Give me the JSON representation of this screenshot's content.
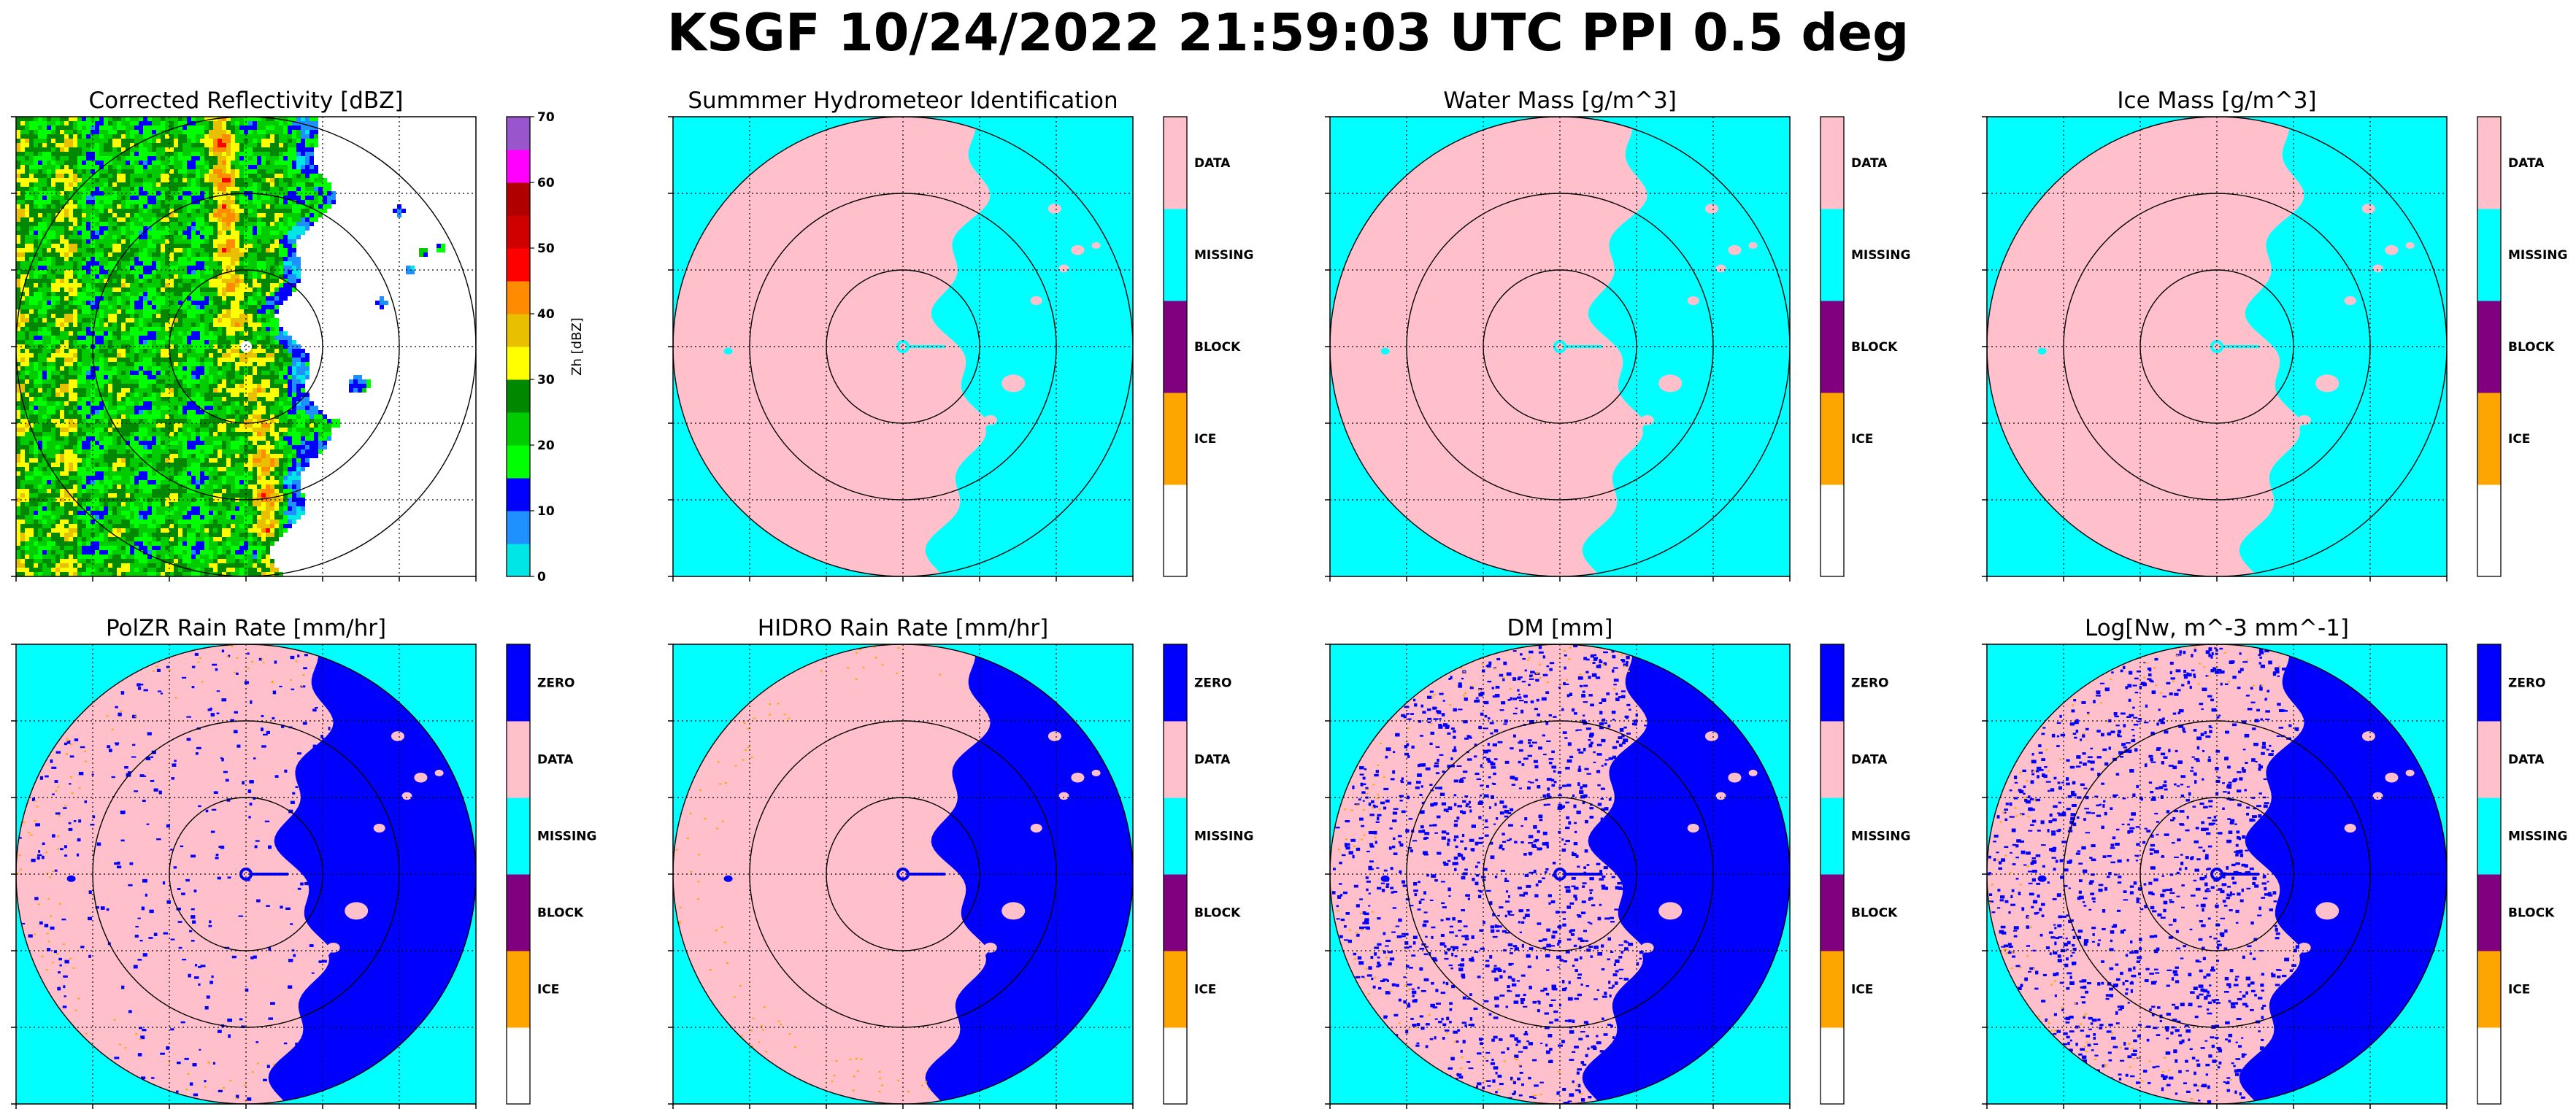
{
  "figure": {
    "title": "KSGF 10/24/2022 21:59:03 UTC PPI 0.5 deg"
  },
  "colors": {
    "pink": "#ffc0cb",
    "cyan": "#00ffff",
    "blue": "#0000ff",
    "purple": "#800080",
    "orange": "#ffa500",
    "white": "#ffffff"
  },
  "chart_data": [
    {
      "type": "heatmap",
      "title": "Corrected Reflectivity [dBZ]",
      "map": "reflectivity",
      "colorbar": {
        "kind": "continuous",
        "label": "Zh [dBZ]",
        "range": [
          0,
          70
        ],
        "ticks": [
          "0",
          "10",
          "20",
          "30",
          "40",
          "50",
          "60",
          "70"
        ],
        "colors": [
          "#00e5e5",
          "#1e90ff",
          "#0000ff",
          "#00ff00",
          "#00cc00",
          "#008800",
          "#ffff00",
          "#e8c000",
          "#ff8c00",
          "#ff0000",
          "#d00000",
          "#b00000",
          "#ff00ff",
          "#9955cc"
        ]
      },
      "range_rings_km": [
        50,
        100,
        150
      ],
      "grid": true
    },
    {
      "type": "heatmap",
      "title": "Summmer Hydrometeor Identification",
      "map": "class",
      "colorbar": {
        "kind": "categorical",
        "categories": [
          "",
          "ICE",
          "BLOCK",
          "MISSING",
          "DATA"
        ],
        "colors": [
          "#ffffff",
          "#ffa500",
          "#800080",
          "#00ffff",
          "#ffc0cb"
        ]
      },
      "range_rings_km": [
        50,
        100,
        150
      ],
      "grid": true
    },
    {
      "type": "heatmap",
      "title": "Water Mass [g/m^3]",
      "map": "class",
      "colorbar": {
        "kind": "categorical",
        "categories": [
          "",
          "ICE",
          "BLOCK",
          "MISSING",
          "DATA"
        ],
        "colors": [
          "#ffffff",
          "#ffa500",
          "#800080",
          "#00ffff",
          "#ffc0cb"
        ]
      },
      "range_rings_km": [
        50,
        100,
        150
      ],
      "grid": true
    },
    {
      "type": "heatmap",
      "title": "Ice Mass [g/m^3]",
      "map": "class",
      "colorbar": {
        "kind": "categorical",
        "categories": [
          "",
          "ICE",
          "BLOCK",
          "MISSING",
          "DATA"
        ],
        "colors": [
          "#ffffff",
          "#ffa500",
          "#800080",
          "#00ffff",
          "#ffc0cb"
        ]
      },
      "range_rings_km": [
        50,
        100,
        150
      ],
      "grid": true
    },
    {
      "type": "heatmap",
      "title": "PolZR Rain Rate [mm/hr]",
      "map": "rate",
      "speckle": 0.12,
      "colorbar": {
        "kind": "categorical",
        "categories": [
          "",
          "ICE",
          "BLOCK",
          "MISSING",
          "DATA",
          "ZERO"
        ],
        "colors": [
          "#ffffff",
          "#ffa500",
          "#800080",
          "#00ffff",
          "#ffc0cb",
          "#0000ff"
        ]
      },
      "range_rings_km": [
        50,
        100,
        150
      ],
      "grid": true
    },
    {
      "type": "heatmap",
      "title": "HIDRO Rain Rate [mm/hr]",
      "map": "rate",
      "speckle": 0.0,
      "colorbar": {
        "kind": "categorical",
        "categories": [
          "",
          "ICE",
          "BLOCK",
          "MISSING",
          "DATA",
          "ZERO"
        ],
        "colors": [
          "#ffffff",
          "#ffa500",
          "#800080",
          "#00ffff",
          "#ffc0cb",
          "#0000ff"
        ]
      },
      "range_rings_km": [
        50,
        100,
        150
      ],
      "grid": true
    },
    {
      "type": "heatmap",
      "title": "DM [mm]",
      "map": "rate",
      "speckle": 0.45,
      "colorbar": {
        "kind": "categorical",
        "categories": [
          "",
          "ICE",
          "BLOCK",
          "MISSING",
          "DATA",
          "ZERO"
        ],
        "colors": [
          "#ffffff",
          "#ffa500",
          "#800080",
          "#00ffff",
          "#ffc0cb",
          "#0000ff"
        ]
      },
      "range_rings_km": [
        50,
        100,
        150
      ],
      "grid": true
    },
    {
      "type": "heatmap",
      "title": "Log[Nw, m^-3 mm^-1]",
      "map": "rate",
      "speckle": 0.45,
      "colorbar": {
        "kind": "categorical",
        "categories": [
          "",
          "ICE",
          "BLOCK",
          "MISSING",
          "DATA",
          "ZERO"
        ],
        "colors": [
          "#ffffff",
          "#ffa500",
          "#800080",
          "#00ffff",
          "#ffc0cb",
          "#0000ff"
        ]
      },
      "range_rings_km": [
        50,
        100,
        150
      ],
      "grid": true
    }
  ]
}
